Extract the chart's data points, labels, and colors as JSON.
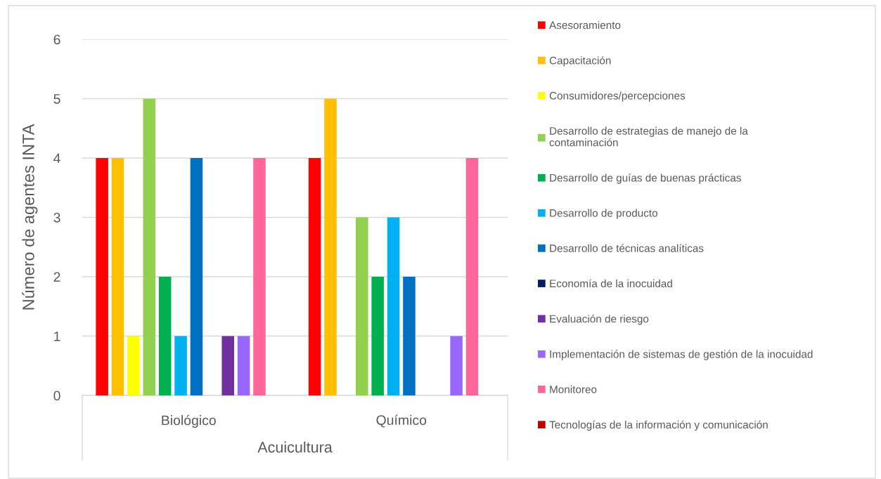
{
  "chart_data": {
    "type": "bar",
    "ylabel": "Número de agentes INTA",
    "xlabel": "Acuicultura",
    "categories": [
      "Biológico",
      "Químico"
    ],
    "ylim": [
      0,
      6
    ],
    "yticks": [
      0,
      1,
      2,
      3,
      4,
      5,
      6
    ],
    "grid": "y",
    "legend": "right",
    "series": [
      {
        "name": "Asesoramiento",
        "color": "#ff0000",
        "values": [
          4,
          4
        ]
      },
      {
        "name": "Capacitación",
        "color": "#ffc000",
        "values": [
          4,
          5
        ]
      },
      {
        "name": "Consumidores/percepciones",
        "color": "#ffff00",
        "values": [
          1,
          null
        ]
      },
      {
        "name": "Desarrollo de estrategias de manejo de la\ncontaminación",
        "color": "#92d050",
        "values": [
          5,
          3
        ]
      },
      {
        "name": "Desarrollo de guías de buenas prácticas",
        "color": "#00b050",
        "values": [
          2,
          2
        ]
      },
      {
        "name": "Desarrollo de producto",
        "color": "#00b0f0",
        "values": [
          1,
          3
        ]
      },
      {
        "name": "Desarrollo de técnicas analíticas",
        "color": "#0070c0",
        "values": [
          4,
          2
        ]
      },
      {
        "name": "Economía de la inocuidad",
        "color": "#002060",
        "values": [
          null,
          null
        ]
      },
      {
        "name": "Evaluación de riesgo",
        "color": "#7030a0",
        "values": [
          1,
          null
        ]
      },
      {
        "name": "Implementación de sistemas de gestión de la inocuidad",
        "color": "#9966ff",
        "values": [
          1,
          1
        ]
      },
      {
        "name": "Monitoreo",
        "color": "#ff6699",
        "values": [
          4,
          4
        ]
      },
      {
        "name": "Tecnologías de la información y comunicación",
        "color": "#c00000",
        "values": [
          null,
          null
        ]
      }
    ]
  }
}
